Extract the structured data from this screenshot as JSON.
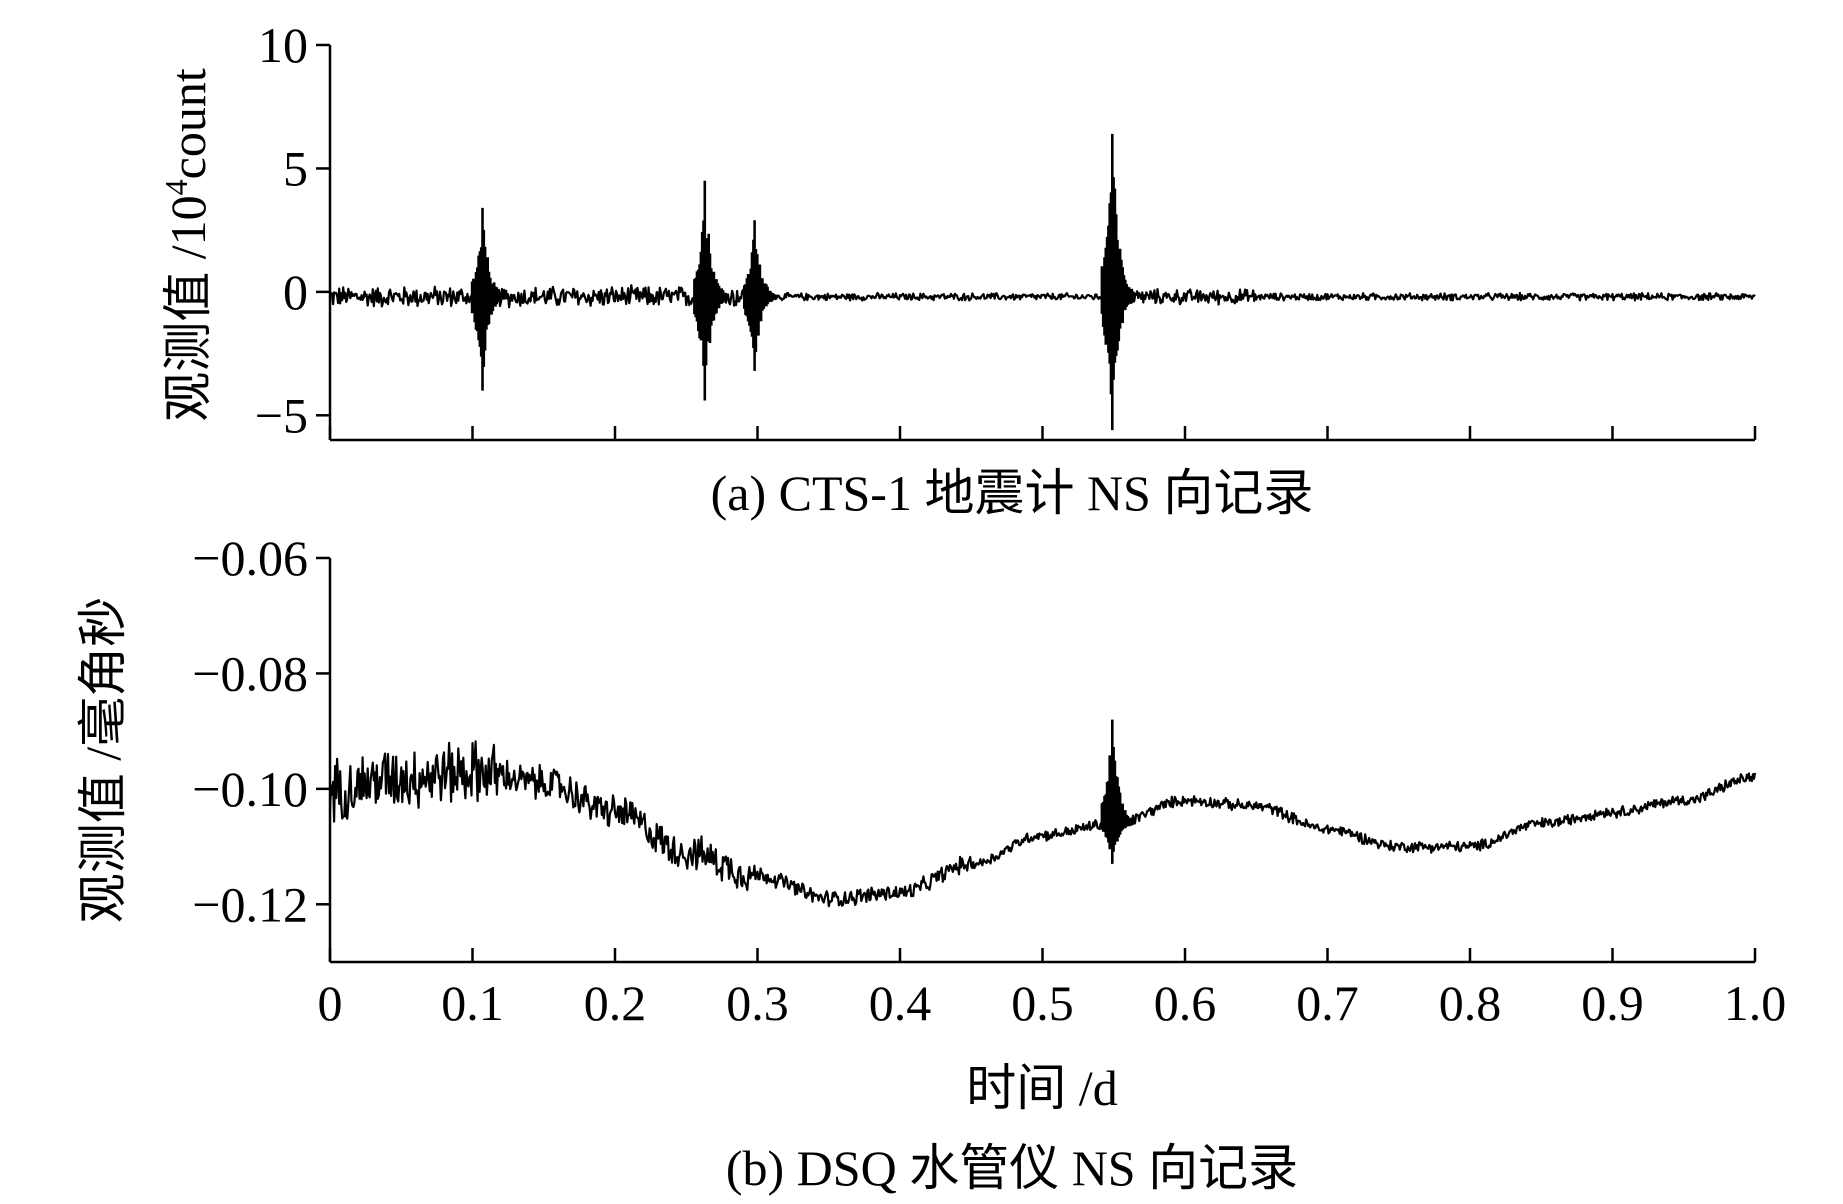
{
  "chart_data": [
    {
      "type": "line",
      "id": "a",
      "title": "(a) CTS-1 地震计 NS 向记录",
      "xlabel": "",
      "ylabel": "观测值 /10⁴count",
      "ylabel_parts": {
        "main": "观测值 /10",
        "sup": "4",
        "tail": "count"
      },
      "xlim": [
        0,
        1.0
      ],
      "ylim": [
        -6,
        10
      ],
      "yticks": [
        10,
        5,
        0,
        -5
      ],
      "ytick_labels": [
        "10",
        "5",
        "0",
        "−5"
      ],
      "xticks": [
        0,
        0.1,
        0.2,
        0.3,
        0.4,
        0.5,
        0.6,
        0.7,
        0.8,
        0.9,
        1.0
      ],
      "xtick_labels_shown": false,
      "baseline": -0.2,
      "noise_segments": [
        {
          "x": [
            0.0,
            0.3
          ],
          "amplitude": 0.35
        },
        {
          "x": [
            0.3,
            0.55
          ],
          "amplitude": 0.12
        },
        {
          "x": [
            0.55,
            0.65
          ],
          "amplitude": 0.25
        },
        {
          "x": [
            0.65,
            1.0
          ],
          "amplitude": 0.12
        }
      ],
      "events": [
        {
          "x": 0.107,
          "max": 3.4,
          "min": -4.0
        },
        {
          "x": 0.263,
          "max": 4.5,
          "min": -4.4
        },
        {
          "x": 0.298,
          "max": 2.9,
          "min": -3.2
        },
        {
          "x": 0.549,
          "max": 6.4,
          "min": -5.6
        }
      ],
      "series": [
        {
          "color": "#000000"
        }
      ],
      "grid": false
    },
    {
      "type": "line",
      "id": "b",
      "title": "(b) DSQ 水管仪 NS 向记录",
      "xlabel": "时间 /d",
      "ylabel": "观测值 /毫角秒",
      "xlim": [
        0,
        1.0
      ],
      "ylim": [
        -0.13,
        -0.06
      ],
      "yticks": [
        -0.06,
        -0.08,
        -0.1,
        -0.12
      ],
      "ytick_labels": [
        "−0.06",
        "−0.08",
        "−0.10",
        "−0.12"
      ],
      "xticks": [
        0,
        0.1,
        0.2,
        0.3,
        0.4,
        0.5,
        0.6,
        0.7,
        0.8,
        0.9,
        1.0
      ],
      "xtick_labels": [
        "0",
        "0.1",
        "0.2",
        "0.3",
        "0.4",
        "0.5",
        "0.6",
        "0.7",
        "0.8",
        "0.9",
        "1.0"
      ],
      "trend": {
        "x": [
          0.0,
          0.05,
          0.1,
          0.15,
          0.2,
          0.25,
          0.3,
          0.35,
          0.4,
          0.45,
          0.5,
          0.55,
          0.6,
          0.65,
          0.7,
          0.75,
          0.8,
          0.85,
          0.9,
          0.95,
          1.0
        ],
        "y": [
          -0.1,
          -0.098,
          -0.097,
          -0.099,
          -0.104,
          -0.111,
          -0.115,
          -0.119,
          -0.118,
          -0.113,
          -0.108,
          -0.106,
          -0.102,
          -0.103,
          -0.107,
          -0.11,
          -0.11,
          -0.106,
          -0.104,
          -0.102,
          -0.098
        ]
      },
      "noise_segments": [
        {
          "x": [
            0.0,
            0.12
          ],
          "amplitude": 0.0045
        },
        {
          "x": [
            0.12,
            0.3
          ],
          "amplitude": 0.0025
        },
        {
          "x": [
            0.3,
            0.45
          ],
          "amplitude": 0.0012
        },
        {
          "x": [
            0.45,
            1.0
          ],
          "amplitude": 0.0008
        }
      ],
      "events": [
        {
          "x": 0.549,
          "max": -0.088,
          "min": -0.113
        }
      ],
      "series": [
        {
          "color": "#000000"
        }
      ],
      "grid": false
    }
  ]
}
